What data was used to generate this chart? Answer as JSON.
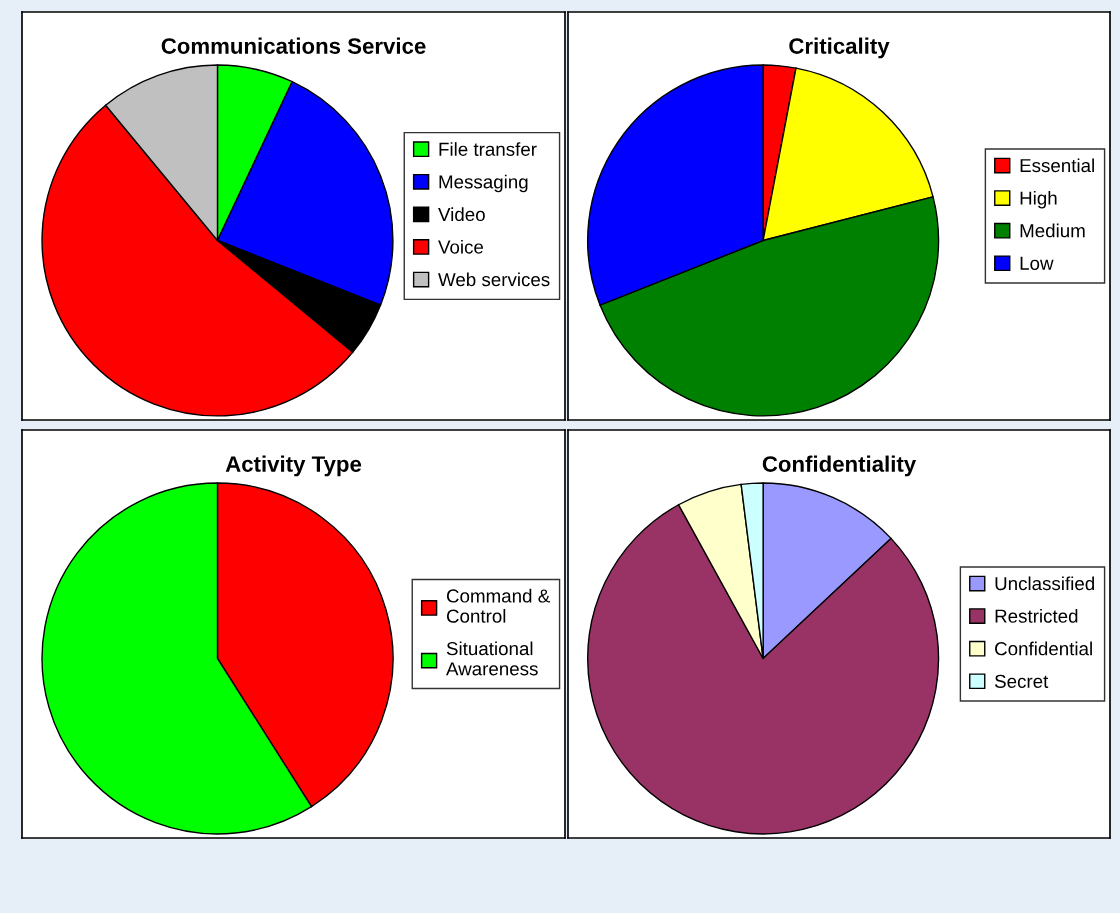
{
  "chart_data": [
    {
      "type": "pie",
      "title": "Communications Service",
      "categories": [
        "File transfer",
        "Messaging",
        "Video",
        "Voice",
        "Web services"
      ],
      "values": [
        7,
        24,
        5,
        53,
        11
      ],
      "colors": [
        "#00ff00",
        "#0000ff",
        "#000000",
        "#ff0000",
        "#c0c0c0"
      ],
      "legend": "right"
    },
    {
      "type": "pie",
      "title": "Criticality",
      "categories": [
        "Essential",
        "High",
        "Medium",
        "Low"
      ],
      "values": [
        3,
        18,
        48,
        31
      ],
      "colors": [
        "#ff0000",
        "#ffff00",
        "#008000",
        "#0000ff"
      ],
      "legend": "right"
    },
    {
      "type": "pie",
      "title": "Activity Type",
      "categories": [
        "Command &\nControl",
        "Situational\nAwareness"
      ],
      "values": [
        41,
        59
      ],
      "colors": [
        "#ff0000",
        "#00ff00"
      ],
      "legend": "right"
    },
    {
      "type": "pie",
      "title": "Confidentiality",
      "categories": [
        "Unclassified",
        "Restricted",
        "Confidential",
        "Secret"
      ],
      "values": [
        13,
        79,
        6,
        2
      ],
      "colors": [
        "#9999ff",
        "#993366",
        "#ffffcc",
        "#ccffff"
      ],
      "legend": "right"
    }
  ]
}
